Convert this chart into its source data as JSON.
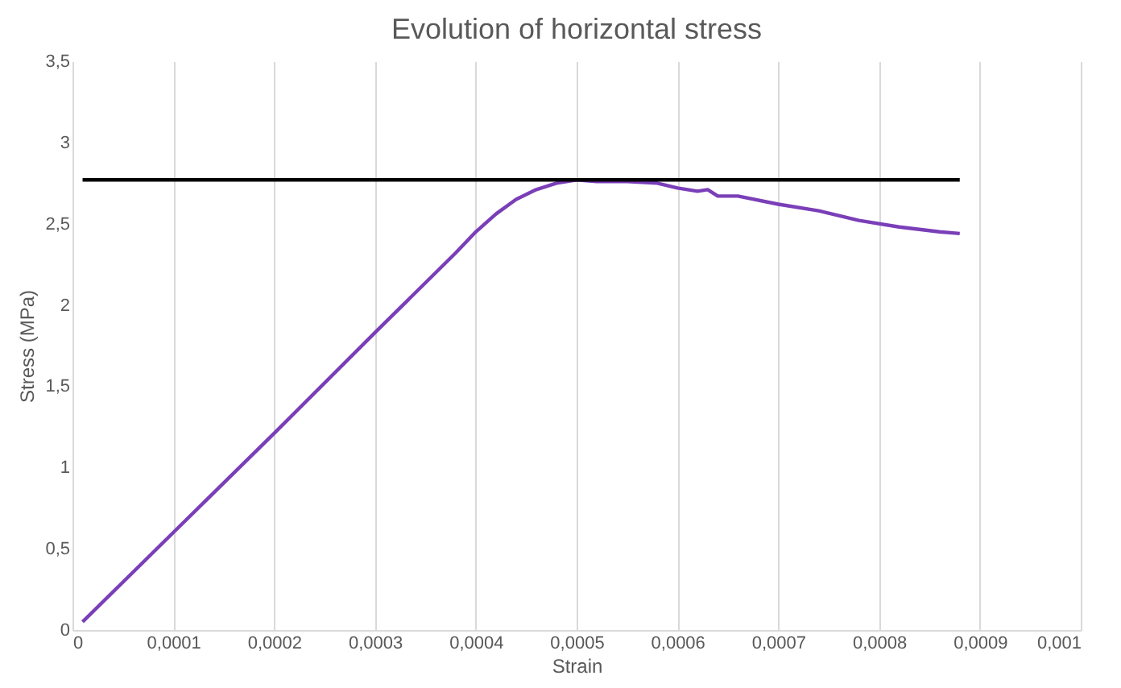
{
  "chart_data": {
    "type": "line",
    "title": "Evolution of horizontal stress",
    "xlabel": "Strain",
    "ylabel": "Stress (MPa)",
    "series": [
      {
        "color": "#7a3fb8",
        "x": [
          1e-05,
          0.0001,
          0.0002,
          0.0003,
          0.00038,
          0.0004,
          0.00042,
          0.00044,
          0.00046,
          0.00048,
          0.0005,
          0.00052,
          0.00055,
          0.00058,
          0.0006,
          0.00062,
          0.00063,
          0.00064,
          0.00066,
          0.0007,
          0.00074,
          0.00078,
          0.00082,
          0.00086,
          0.00088
        ],
        "values": [
          0.05,
          0.6,
          1.21,
          1.83,
          2.32,
          2.45,
          2.56,
          2.65,
          2.71,
          2.75,
          2.77,
          2.76,
          2.76,
          2.75,
          2.72,
          2.7,
          2.71,
          2.67,
          2.67,
          2.62,
          2.58,
          2.52,
          2.48,
          2.45,
          2.44
        ]
      },
      {
        "color": "#000000",
        "x": [
          1e-05,
          0.00088
        ],
        "values": [
          2.77,
          2.77
        ]
      }
    ],
    "xlim": [
      0,
      0.001
    ],
    "ylim": [
      0,
      3.5
    ],
    "xticks": [
      0,
      {
        "value": 0.0001,
        "label": "0,0001"
      },
      {
        "value": 0.0002,
        "label": "0,0002"
      },
      {
        "value": 0.0003,
        "label": "0,0003"
      },
      {
        "value": 0.0004,
        "label": "0,0004"
      },
      {
        "value": 0.0005,
        "label": "0,0005"
      },
      {
        "value": 0.0006,
        "label": "0,0006"
      },
      {
        "value": 0.0007,
        "label": "0,0007"
      },
      {
        "value": 0.0008,
        "label": "0,0008"
      },
      {
        "value": 0.0009,
        "label": "0,0009"
      },
      {
        "value": 0.001,
        "label": "0,001"
      }
    ],
    "yticks": [
      0,
      {
        "value": 0.5,
        "label": "0,5"
      },
      1,
      {
        "value": 1.5,
        "label": "1,5"
      },
      2,
      {
        "value": 2.5,
        "label": "2,5"
      },
      3,
      {
        "value": 3.5,
        "label": "3,5"
      }
    ],
    "grid": "x",
    "marker": "none",
    "line_style": "solid"
  }
}
